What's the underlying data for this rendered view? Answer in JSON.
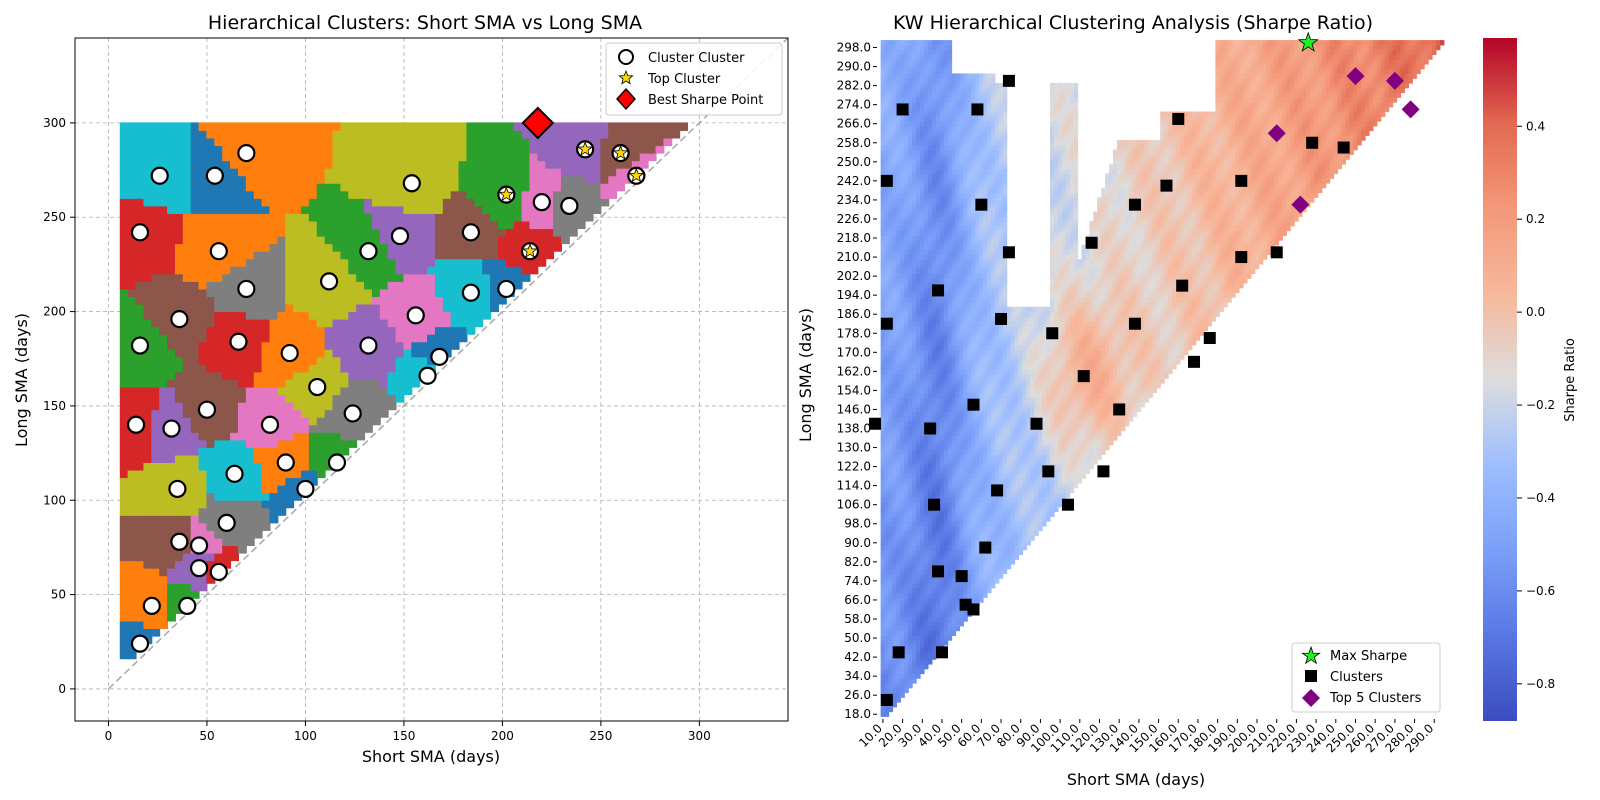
{
  "chart_data": [
    {
      "type": "scatter",
      "title": "Hierarchical Clusters: Short SMA vs Long SMA",
      "xlabel": "Short SMA (days)",
      "ylabel": "Long SMA (days)",
      "xlim": [
        -17,
        345
      ],
      "ylim": [
        -17,
        345
      ],
      "xticks": [
        "0",
        "50",
        "100",
        "150",
        "200",
        "250",
        "300"
      ],
      "yticks": [
        "0",
        "50",
        "100",
        "150",
        "200",
        "250",
        "300"
      ],
      "grid": true,
      "legend_position": "top-right",
      "legend": [
        "Cluster Cluster",
        "Top Cluster",
        "Best Sharpe Point"
      ],
      "cluster_colors": [
        "#1f77b4",
        "#ff7f0e",
        "#2ca02c",
        "#d62728",
        "#9467bd",
        "#8c564b",
        "#e377c2",
        "#7f7f7f",
        "#bcbd22",
        "#17becf"
      ],
      "diagonal_reference": [
        [
          0,
          0
        ],
        [
          345,
          345
        ]
      ],
      "clusters": [
        {
          "x": 16,
          "y": 24
        },
        {
          "x": 22,
          "y": 44
        },
        {
          "x": 40,
          "y": 44
        },
        {
          "x": 56,
          "y": 62
        },
        {
          "x": 46,
          "y": 64
        },
        {
          "x": 36,
          "y": 78
        },
        {
          "x": 46,
          "y": 76
        },
        {
          "x": 60,
          "y": 88
        },
        {
          "x": 35,
          "y": 106
        },
        {
          "x": 64,
          "y": 114
        },
        {
          "x": 100,
          "y": 106
        },
        {
          "x": 90,
          "y": 120
        },
        {
          "x": 116,
          "y": 120
        },
        {
          "x": 14,
          "y": 140
        },
        {
          "x": 32,
          "y": 138
        },
        {
          "x": 50,
          "y": 148
        },
        {
          "x": 82,
          "y": 140
        },
        {
          "x": 124,
          "y": 146
        },
        {
          "x": 106,
          "y": 160
        },
        {
          "x": 162,
          "y": 166
        },
        {
          "x": 168,
          "y": 176
        },
        {
          "x": 92,
          "y": 178
        },
        {
          "x": 16,
          "y": 182
        },
        {
          "x": 66,
          "y": 184
        },
        {
          "x": 132,
          "y": 182
        },
        {
          "x": 36,
          "y": 196
        },
        {
          "x": 156,
          "y": 198
        },
        {
          "x": 70,
          "y": 212
        },
        {
          "x": 112,
          "y": 216
        },
        {
          "x": 184,
          "y": 210
        },
        {
          "x": 202,
          "y": 212
        },
        {
          "x": 56,
          "y": 232
        },
        {
          "x": 132,
          "y": 232
        },
        {
          "x": 16,
          "y": 242
        },
        {
          "x": 148,
          "y": 240
        },
        {
          "x": 184,
          "y": 242
        },
        {
          "x": 220,
          "y": 258
        },
        {
          "x": 234,
          "y": 256
        },
        {
          "x": 154,
          "y": 268
        },
        {
          "x": 26,
          "y": 272
        },
        {
          "x": 54,
          "y": 272
        },
        {
          "x": 70,
          "y": 284
        }
      ],
      "top_clusters": [
        {
          "x": 202,
          "y": 262
        },
        {
          "x": 214,
          "y": 232
        },
        {
          "x": 242,
          "y": 286
        },
        {
          "x": 260,
          "y": 284
        },
        {
          "x": 268,
          "y": 272
        }
      ],
      "best_point": {
        "x": 218,
        "y": 300
      }
    },
    {
      "type": "heatmap",
      "title": "KW Hierarchical Clustering Analysis (Sharpe Ratio)",
      "xlabel": "Short SMA (days)",
      "ylabel": "Long SMA (days)",
      "xticks": [
        "10.0",
        "20.0",
        "30.0",
        "40.0",
        "50.0",
        "60.0",
        "70.0",
        "80.0",
        "90.0",
        "100.0",
        "110.0",
        "120.0",
        "130.0",
        "140.0",
        "150.0",
        "160.0",
        "170.0",
        "180.0",
        "190.0",
        "200.0",
        "210.0",
        "220.0",
        "230.0",
        "240.0",
        "250.0",
        "260.0",
        "270.0",
        "280.0",
        "290.0"
      ],
      "yticks": [
        "298.0",
        "290.0",
        "282.0",
        "274.0",
        "266.0",
        "258.0",
        "250.0",
        "242.0",
        "234.0",
        "226.0",
        "218.0",
        "210.0",
        "202.0",
        "194.0",
        "186.0",
        "178.0",
        "170.0",
        "162.0",
        "154.0",
        "146.0",
        "138.0",
        "130.0",
        "122.0",
        "114.0",
        "106.0",
        "98.0",
        "90.0",
        "82.0",
        "74.0",
        "66.0",
        "58.0",
        "50.0",
        "42.0",
        "34.0",
        "26.0",
        "18.0"
      ],
      "colorbar_label": "Sharpe Ratio",
      "colorbar_range": [
        -0.88,
        0.59
      ],
      "colorbar_ticks": [
        "0.4",
        "0.2",
        "0.0",
        "−0.2",
        "−0.4",
        "−0.6",
        "−0.8"
      ],
      "colorbar_tick_values": [
        0.4,
        0.2,
        0.0,
        -0.2,
        -0.4,
        -0.6,
        -0.8
      ],
      "legend_position": "bottom-right",
      "legend": [
        "Max Sharpe",
        "Clusters",
        "Top 5 Clusters"
      ],
      "clusters": [
        {
          "x": 12,
          "y": 24
        },
        {
          "x": 18,
          "y": 44
        },
        {
          "x": 40,
          "y": 44
        },
        {
          "x": 56,
          "y": 62
        },
        {
          "x": 52,
          "y": 64
        },
        {
          "x": 38,
          "y": 78
        },
        {
          "x": 50,
          "y": 76
        },
        {
          "x": 62,
          "y": 88
        },
        {
          "x": 36,
          "y": 106
        },
        {
          "x": 68,
          "y": 112
        },
        {
          "x": 104,
          "y": 106
        },
        {
          "x": 94,
          "y": 120
        },
        {
          "x": 122,
          "y": 120
        },
        {
          "x": 6,
          "y": 140
        },
        {
          "x": 34,
          "y": 138
        },
        {
          "x": 56,
          "y": 148
        },
        {
          "x": 88,
          "y": 140
        },
        {
          "x": 130,
          "y": 146
        },
        {
          "x": 112,
          "y": 160
        },
        {
          "x": 168,
          "y": 166
        },
        {
          "x": 176,
          "y": 176
        },
        {
          "x": 96,
          "y": 178
        },
        {
          "x": 12,
          "y": 182
        },
        {
          "x": 70,
          "y": 184
        },
        {
          "x": 138,
          "y": 182
        },
        {
          "x": 38,
          "y": 196
        },
        {
          "x": 162,
          "y": 198
        },
        {
          "x": 74,
          "y": 212
        },
        {
          "x": 116,
          "y": 216
        },
        {
          "x": 192,
          "y": 210
        },
        {
          "x": 210,
          "y": 212
        },
        {
          "x": 60,
          "y": 232
        },
        {
          "x": 138,
          "y": 232
        },
        {
          "x": 12,
          "y": 242
        },
        {
          "x": 154,
          "y": 240
        },
        {
          "x": 192,
          "y": 242
        },
        {
          "x": 228,
          "y": 258
        },
        {
          "x": 244,
          "y": 256
        },
        {
          "x": 160,
          "y": 268
        },
        {
          "x": 20,
          "y": 272
        },
        {
          "x": 58,
          "y": 272
        },
        {
          "x": 74,
          "y": 284
        }
      ],
      "top5_clusters": [
        {
          "x": 210,
          "y": 262
        },
        {
          "x": 222,
          "y": 232
        },
        {
          "x": 250,
          "y": 286
        },
        {
          "x": 270,
          "y": 284
        },
        {
          "x": 278,
          "y": 272
        }
      ],
      "max_sharpe": {
        "x": 226,
        "y": 300
      }
    }
  ]
}
